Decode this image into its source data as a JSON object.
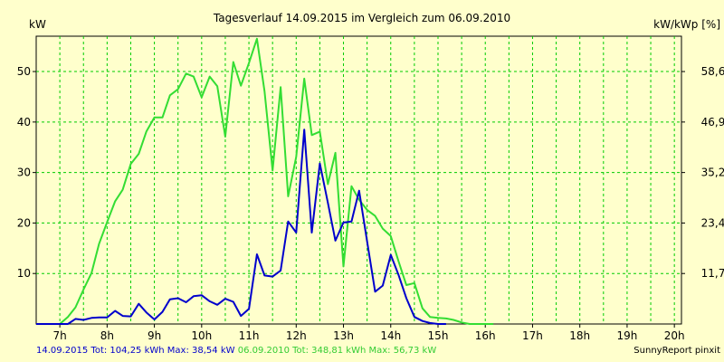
{
  "chart_data": {
    "type": "line",
    "title": "Tagesverlauf 14.09.2015 im Vergleich zum 06.09.2010",
    "ylabel_left": "kW",
    "ylabel_right": "kW/kWp [%]",
    "xlim": [
      6.5,
      20.15
    ],
    "ylim": [
      0,
      57
    ],
    "x_ticks": [
      7,
      8,
      9,
      10,
      11,
      12,
      13,
      14,
      15,
      16,
      17,
      18,
      19,
      20
    ],
    "x_tick_labels": [
      "7h",
      "8h",
      "9h",
      "10h",
      "11h",
      "12h",
      "13h",
      "14h",
      "15h",
      "16h",
      "17h",
      "18h",
      "19h",
      "20h"
    ],
    "y_ticks_left": [
      10,
      20,
      30,
      40,
      50
    ],
    "y_ticks_right": [
      {
        "value": 10,
        "label": "11,7"
      },
      {
        "value": 20,
        "label": "23,4"
      },
      {
        "value": 30,
        "label": "35,2"
      },
      {
        "value": 40,
        "label": "46,9"
      },
      {
        "value": 50,
        "label": "58,6"
      }
    ],
    "grid": true,
    "colors": {
      "background": "#ffffcc",
      "grid": "#00cc00",
      "series_2015": "#0000cc",
      "series_2010": "#33dd33"
    },
    "series": [
      {
        "name": "06.09.2010",
        "color": "#33dd33",
        "points": [
          [
            6.5,
            0
          ],
          [
            7.0,
            0
          ],
          [
            7.17,
            1.4
          ],
          [
            7.33,
            3.3
          ],
          [
            7.5,
            6.8
          ],
          [
            7.67,
            10.1
          ],
          [
            7.83,
            15.9
          ],
          [
            8.0,
            20.2
          ],
          [
            8.17,
            24.3
          ],
          [
            8.33,
            26.6
          ],
          [
            8.5,
            31.7
          ],
          [
            8.67,
            33.7
          ],
          [
            8.83,
            38.1
          ],
          [
            9.0,
            40.9
          ],
          [
            9.17,
            40.9
          ],
          [
            9.33,
            45.3
          ],
          [
            9.5,
            46.5
          ],
          [
            9.67,
            49.6
          ],
          [
            9.83,
            49.0
          ],
          [
            10.0,
            44.9
          ],
          [
            10.17,
            49.0
          ],
          [
            10.33,
            47.1
          ],
          [
            10.5,
            37.1
          ],
          [
            10.67,
            51.9
          ],
          [
            10.83,
            47.2
          ],
          [
            11.0,
            51.7
          ],
          [
            11.17,
            56.5
          ],
          [
            11.33,
            46.1
          ],
          [
            11.5,
            30.4
          ],
          [
            11.67,
            46.9
          ],
          [
            11.83,
            25.3
          ],
          [
            12.0,
            33.1
          ],
          [
            12.17,
            48.6
          ],
          [
            12.33,
            37.4
          ],
          [
            12.5,
            38.1
          ],
          [
            12.67,
            27.7
          ],
          [
            12.83,
            33.9
          ],
          [
            13.0,
            11.4
          ],
          [
            13.17,
            27.3
          ],
          [
            13.33,
            24.6
          ],
          [
            13.5,
            22.6
          ],
          [
            13.67,
            21.4
          ],
          [
            13.83,
            18.9
          ],
          [
            14.0,
            17.4
          ],
          [
            14.17,
            12.3
          ],
          [
            14.33,
            7.7
          ],
          [
            14.5,
            8.1
          ],
          [
            14.67,
            3.1
          ],
          [
            14.83,
            1.4
          ],
          [
            15.0,
            1.2
          ],
          [
            15.17,
            1.1
          ],
          [
            15.33,
            0.8
          ],
          [
            15.5,
            0.3
          ],
          [
            15.67,
            0
          ],
          [
            16.17,
            0
          ]
        ]
      },
      {
        "name": "14.09.2015",
        "color": "#0000cc",
        "points": [
          [
            6.5,
            0
          ],
          [
            7.17,
            0
          ],
          [
            7.33,
            1.0
          ],
          [
            7.5,
            0.8
          ],
          [
            7.67,
            1.2
          ],
          [
            7.83,
            1.3
          ],
          [
            8.0,
            1.3
          ],
          [
            8.17,
            2.6
          ],
          [
            8.33,
            1.6
          ],
          [
            8.5,
            1.5
          ],
          [
            8.67,
            4.0
          ],
          [
            8.83,
            2.3
          ],
          [
            9.0,
            0.9
          ],
          [
            9.17,
            2.4
          ],
          [
            9.33,
            4.9
          ],
          [
            9.5,
            5.1
          ],
          [
            9.67,
            4.3
          ],
          [
            9.83,
            5.5
          ],
          [
            10.0,
            5.7
          ],
          [
            10.17,
            4.5
          ],
          [
            10.33,
            3.8
          ],
          [
            10.5,
            5.0
          ],
          [
            10.67,
            4.4
          ],
          [
            10.83,
            1.6
          ],
          [
            11.0,
            3.0
          ],
          [
            11.17,
            13.8
          ],
          [
            11.33,
            9.6
          ],
          [
            11.5,
            9.4
          ],
          [
            11.67,
            10.6
          ],
          [
            11.83,
            20.3
          ],
          [
            12.0,
            18.1
          ],
          [
            12.17,
            38.5
          ],
          [
            12.33,
            18.1
          ],
          [
            12.5,
            31.8
          ],
          [
            12.67,
            24.0
          ],
          [
            12.83,
            16.5
          ],
          [
            13.0,
            20.1
          ],
          [
            13.17,
            20.3
          ],
          [
            13.33,
            26.4
          ],
          [
            13.5,
            16.4
          ],
          [
            13.67,
            6.4
          ],
          [
            13.83,
            7.6
          ],
          [
            14.0,
            13.7
          ],
          [
            14.17,
            9.6
          ],
          [
            14.33,
            5.1
          ],
          [
            14.5,
            1.4
          ],
          [
            14.67,
            0.6
          ],
          [
            14.83,
            0.2
          ],
          [
            15.0,
            0
          ],
          [
            15.17,
            0
          ]
        ]
      }
    ]
  },
  "footer": {
    "series_2015_summary": "14.09.2015 Tot: 104,25 kWh Max: 38,54 kW",
    "series_2010_summary": "06.09.2010 Tot: 348,81 kWh Max: 56,73 kW",
    "credit": "SunnyReport pinxit"
  }
}
